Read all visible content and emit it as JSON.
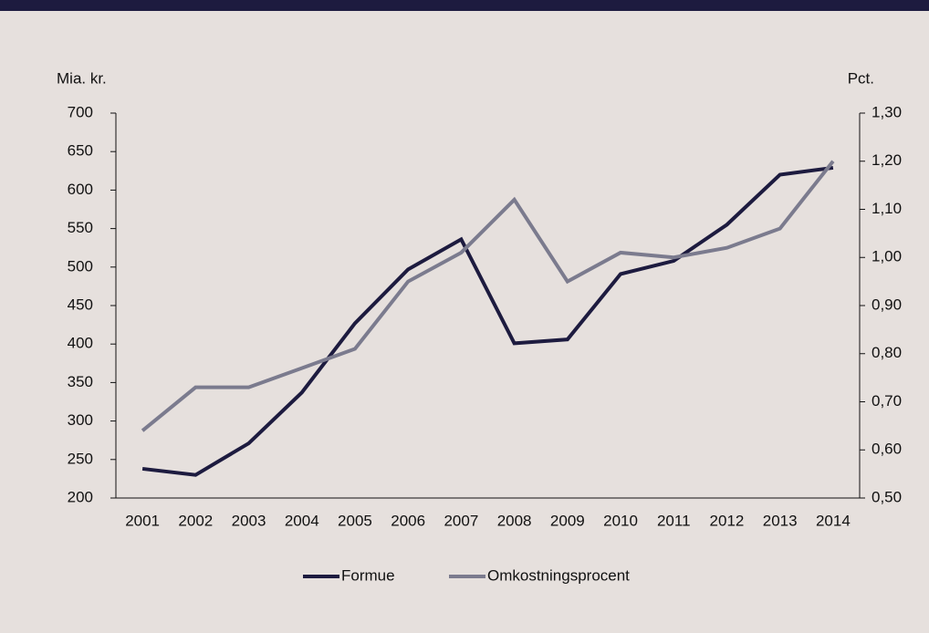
{
  "chart_data": {
    "type": "line",
    "y_label": "Mia. kr.",
    "y2_label": "Pct.",
    "categories": [
      "2001",
      "2002",
      "2003",
      "2004",
      "2005",
      "2006",
      "2007",
      "2008",
      "2009",
      "2010",
      "2011",
      "2012",
      "2013",
      "2014"
    ],
    "series": [
      {
        "name": "Formue",
        "color": "#1d1b3f",
        "values": [
          238,
          230,
          271,
          337,
          427,
          497,
          536,
          401,
          406,
          491,
          508,
          555,
          620,
          629
        ]
      },
      {
        "name": "Omkostningsprocent",
        "color": "#7b7b8e",
        "axis": "y2",
        "values": [
          0.64,
          0.73,
          0.73,
          0.77,
          0.81,
          0.95,
          1.01,
          1.12,
          0.95,
          1.01,
          1.0,
          1.02,
          1.06,
          1.2
        ]
      }
    ],
    "ylim": [
      200,
      700
    ],
    "yticks": [
      200,
      250,
      300,
      350,
      400,
      450,
      500,
      550,
      600,
      650,
      700
    ],
    "y2lim": [
      0.5,
      1.3
    ],
    "y2ticks": [
      {
        "value": 0.5,
        "label": "0,50"
      },
      {
        "value": 0.6,
        "label": "0,60"
      },
      {
        "value": 0.7,
        "label": "0,70"
      },
      {
        "value": 0.8,
        "label": "0,80"
      },
      {
        "value": 0.9,
        "label": "0,90"
      },
      {
        "value": 1.0,
        "label": "1,00"
      },
      {
        "value": 1.1,
        "label": "1,10"
      },
      {
        "value": 1.2,
        "label": "1,20"
      },
      {
        "value": 1.3,
        "label": "1,30"
      }
    ],
    "grid": false,
    "legend": "bottom"
  }
}
